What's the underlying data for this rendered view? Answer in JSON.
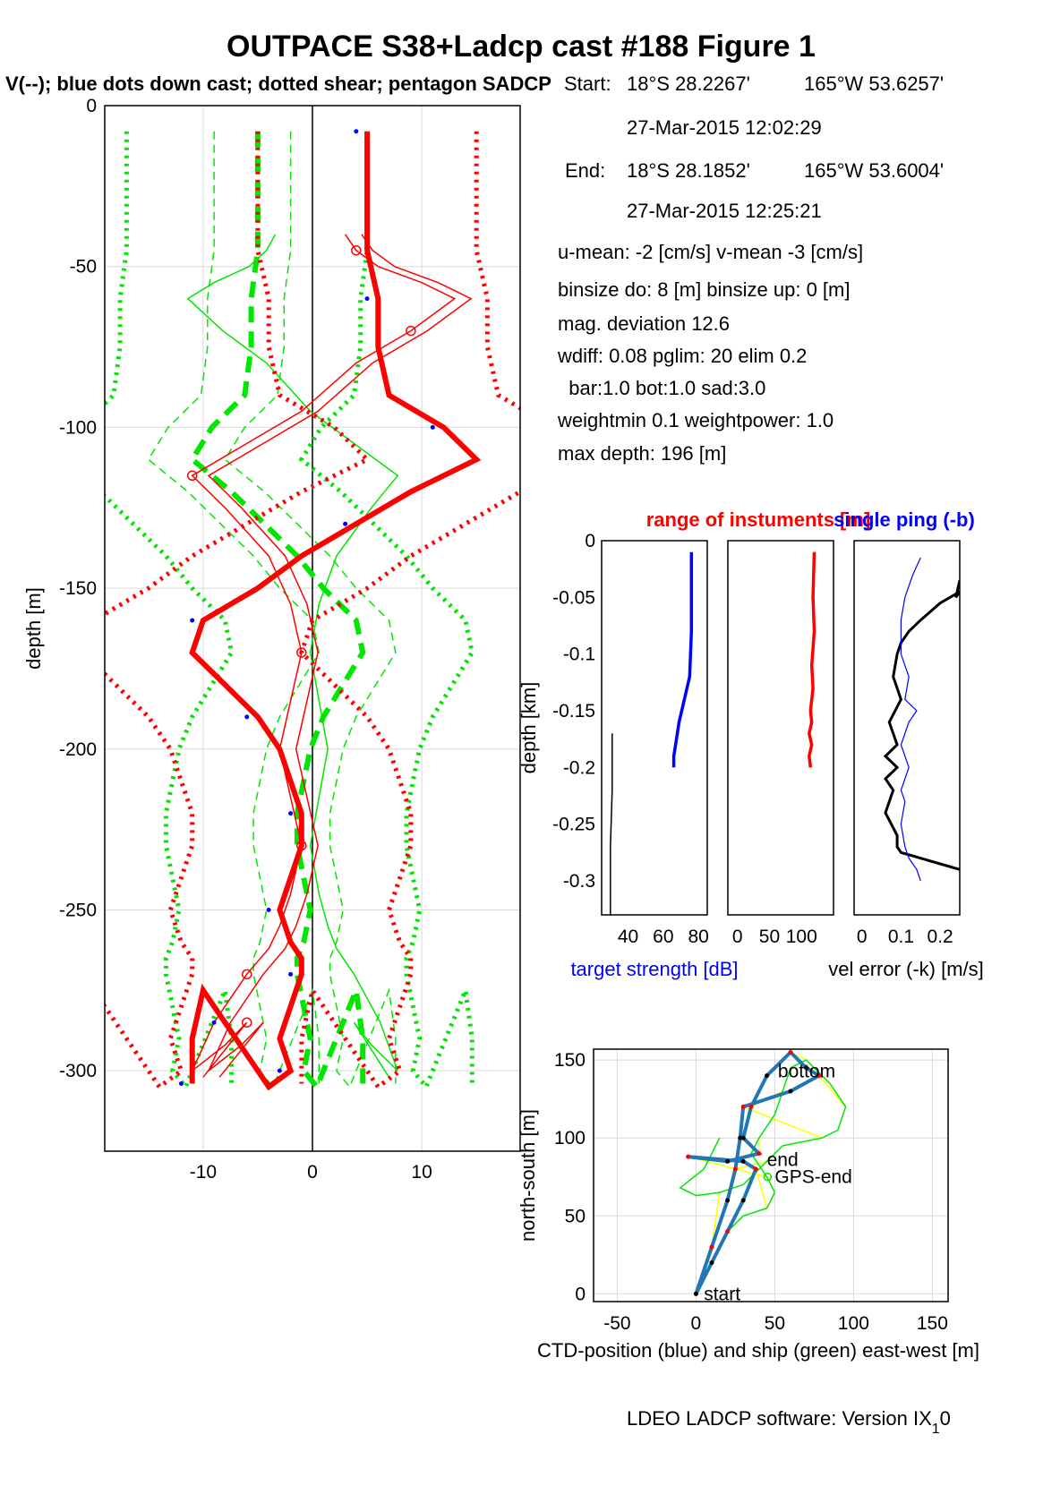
{
  "figure": {
    "title": "OUTPACE S38+Ladcp cast #188  Figure 1",
    "subtitle": "V(--); blue dots down cast; dotted shear; pentagon SADCP",
    "footer": "LDEO LADCP software: Version IX",
    "footer_sub": "1",
    "footer_end": "0"
  },
  "info": {
    "start_label": "Start:",
    "start_lat": "18°S 28.2267'",
    "start_lon": "165°W 53.6257'",
    "start_time": "27-Mar-2015 12:02:29",
    "end_label": "End:",
    "end_lat": "18°S 28.1852'",
    "end_lon": "165°W 53.6004'",
    "end_time": "27-Mar-2015 12:25:21",
    "umean": "u-mean:  -2 [cm/s]     v-mean  -3 [cm/s]",
    "binsize": "binsize do: 8 [m]  binsize up:  0 [m]",
    "magdev": "mag. deviation 12.6",
    "wdiff": "wdiff: 0.08  pglim: 20  elim 0.2",
    "bar": "  bar:1.0 bot:1.0 sad:3.0",
    "weight": "weightmin 0.1  weightpower: 1.0",
    "maxdepth": "max depth: 196 [m]"
  },
  "colors": {
    "red": "#ff0000",
    "green": "#00e600",
    "blue": "#0000ff",
    "black": "#000000",
    "mblue": "#1f77b4",
    "yellow": "#ffff00"
  },
  "chart_data": [
    {
      "id": "velocity-profile",
      "type": "line",
      "ylabel": "depth [m]",
      "xlim": [
        -19,
        19
      ],
      "ylim": [
        -325,
        0
      ],
      "xticks": [
        -10,
        0,
        10
      ],
      "yticks": [
        0,
        -50,
        -100,
        -150,
        -200,
        -250,
        -300
      ],
      "grid": true,
      "series": [
        {
          "style": "u-thick",
          "x": [
            5,
            5,
            5,
            6,
            6,
            7,
            12,
            15,
            9,
            4,
            -1,
            -5,
            -10,
            -11,
            -8,
            -5,
            -3,
            -2,
            -1,
            -1,
            -2,
            -3,
            -2,
            -1,
            -1,
            -2,
            -3,
            -2,
            -4,
            -6,
            -8,
            -10,
            -11,
            -11
          ],
          "y": [
            -8,
            -30,
            -45,
            -60,
            -75,
            -90,
            -100,
            -110,
            -120,
            -130,
            -140,
            -150,
            -160,
            -170,
            -180,
            -190,
            -200,
            -210,
            -220,
            -230,
            -240,
            -250,
            -260,
            -265,
            -270,
            -280,
            -290,
            -300,
            -305,
            -295,
            -285,
            -275,
            -290,
            -304
          ]
        },
        {
          "style": "u-thin",
          "x": [
            3,
            4,
            6,
            10,
            13,
            9,
            4,
            -1,
            -6,
            -11,
            -8,
            -4,
            -2,
            -1,
            -2,
            -3,
            -2,
            -1,
            -2,
            -3,
            -4,
            -6,
            -9,
            -11,
            -8,
            -6,
            -10
          ],
          "y": [
            -40,
            -45,
            -50,
            -55,
            -60,
            -70,
            -80,
            -95,
            -105,
            -115,
            -125,
            -140,
            -155,
            -170,
            -185,
            -200,
            -215,
            -230,
            -245,
            -255,
            -262,
            -270,
            -285,
            -300,
            -292,
            -285,
            -302
          ]
        }
      ]
    },
    {
      "id": "target-strength",
      "type": "line",
      "xlabel": "target strength [dB]",
      "ylabel": "depth [km]",
      "xlim": [
        25,
        85
      ],
      "ylim": [
        -0.33,
        0
      ],
      "xticks": [
        40,
        60,
        80
      ],
      "yticks": [
        0,
        -0.05,
        -0.1,
        -0.15,
        -0.2,
        -0.25,
        -0.3
      ],
      "series": [
        {
          "name": "target strength",
          "x": [
            76,
            76,
            76,
            75.5,
            75,
            72,
            69,
            67,
            66,
            66
          ],
          "y": [
            -0.01,
            -0.05,
            -0.08,
            -0.1,
            -0.12,
            -0.14,
            -0.16,
            -0.18,
            -0.19,
            -0.2
          ]
        },
        {
          "name": "range",
          "x": [
            31,
            31,
            30,
            30
          ],
          "y": [
            -0.17,
            -0.22,
            -0.27,
            -0.33
          ]
        }
      ]
    },
    {
      "id": "single-ping",
      "type": "line",
      "title": "range of instuments [m]",
      "xlim": [
        -15,
        150
      ],
      "ylim": [
        -0.33,
        0
      ],
      "xticks": [
        0,
        50,
        100
      ],
      "series": [
        {
          "name": "single ping",
          "x": [
            120,
            118,
            120,
            116,
            118,
            114,
            116,
            112,
            116,
            112,
            114
          ],
          "y": [
            -0.01,
            -0.05,
            -0.08,
            -0.11,
            -0.13,
            -0.15,
            -0.16,
            -0.17,
            -0.18,
            -0.19,
            -0.2
          ]
        }
      ]
    },
    {
      "id": "velocity-error",
      "type": "line",
      "title": "single ping (-b)",
      "xlabel": "vel error (-k) [m/s]",
      "xlim": [
        -0.02,
        0.25
      ],
      "ylim": [
        -0.33,
        0
      ],
      "xticks": [
        0,
        0.1,
        0.2
      ],
      "series": [
        {
          "name": "vel error (-k)",
          "x": [
            0.25,
            0.24,
            0.25,
            0.2,
            0.15,
            0.12,
            0.1,
            0.09,
            0.08,
            0.1,
            0.07,
            0.09,
            0.06,
            0.09,
            0.06,
            0.08,
            0.06,
            0.09,
            0.09,
            0.1,
            0.15,
            0.2,
            0.25
          ],
          "y": [
            -0.035,
            -0.05,
            -0.045,
            -0.055,
            -0.07,
            -0.08,
            -0.09,
            -0.1,
            -0.12,
            -0.14,
            -0.16,
            -0.18,
            -0.19,
            -0.2,
            -0.21,
            -0.22,
            -0.24,
            -0.26,
            -0.27,
            -0.275,
            -0.28,
            -0.285,
            -0.29
          ]
        },
        {
          "name": "single ping",
          "x": [
            0.15,
            0.13,
            0.11,
            0.1,
            0.1,
            0.12,
            0.11,
            0.14,
            0.12,
            0.1,
            0.12,
            0.11,
            0.1,
            0.11,
            0.1,
            0.11,
            0.12,
            0.14,
            0.15
          ],
          "y": [
            -0.015,
            -0.03,
            -0.05,
            -0.07,
            -0.1,
            -0.12,
            -0.14,
            -0.15,
            -0.16,
            -0.18,
            -0.2,
            -0.21,
            -0.22,
            -0.23,
            -0.25,
            -0.27,
            -0.28,
            -0.29,
            -0.3
          ]
        }
      ]
    },
    {
      "id": "track",
      "type": "line",
      "xlabel": "CTD-position (blue) and ship (green) east-west [m]",
      "ylabel": "north-south [m]",
      "xlim": [
        -65,
        160
      ],
      "ylim": [
        -5,
        157
      ],
      "xticks": [
        -50,
        0,
        50,
        100,
        150
      ],
      "yticks": [
        0,
        50,
        100,
        150
      ],
      "labels": [
        {
          "text": "start",
          "x": 5,
          "y": 0
        },
        {
          "text": "bottom",
          "x": 52,
          "y": 143
        },
        {
          "text": "end",
          "x": 45,
          "y": 86
        },
        {
          "text": "GPS-end",
          "x": 50,
          "y": 75
        }
      ],
      "series": [
        {
          "name": "CTD-position",
          "x": [
            0,
            10,
            20,
            30,
            38,
            30,
            -5,
            20,
            40,
            30,
            35,
            45,
            60,
            70,
            78,
            60,
            30,
            28,
            25,
            20,
            10,
            0
          ],
          "y": [
            0,
            20,
            40,
            60,
            80,
            85,
            88,
            85,
            90,
            100,
            120,
            140,
            155,
            145,
            140,
            130,
            120,
            100,
            80,
            60,
            30,
            0
          ]
        },
        {
          "name": "ship",
          "x": [
            0,
            10,
            20,
            30,
            45,
            50,
            45,
            35,
            40,
            50,
            55,
            60,
            70,
            85,
            95,
            90,
            80,
            55,
            45,
            30,
            15,
            0,
            -10,
            5,
            15
          ],
          "y": [
            0,
            20,
            40,
            50,
            55,
            65,
            75,
            90,
            100,
            115,
            130,
            145,
            150,
            135,
            120,
            105,
            100,
            95,
            85,
            70,
            65,
            63,
            68,
            80,
            100
          ]
        }
      ]
    }
  ]
}
